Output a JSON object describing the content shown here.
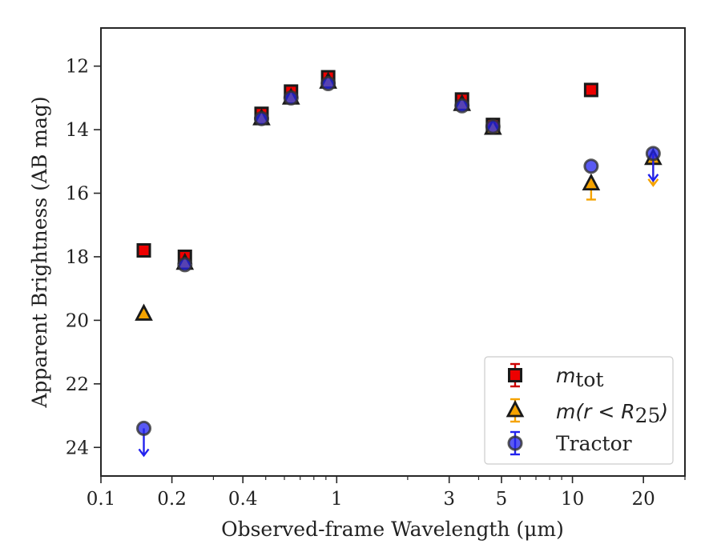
{
  "chart_data": {
    "type": "scatter",
    "title": "",
    "xlabel": "Observed-frame Wavelength (μm)",
    "ylabel": "Apparent Brightness (AB mag)",
    "x_scale": "log",
    "xlim": [
      0.1,
      30
    ],
    "ylim": [
      24.9,
      10.8
    ],
    "y_inverted": true,
    "x_ticks": [
      0.1,
      0.2,
      0.4,
      1,
      3,
      5,
      10,
      20
    ],
    "x_tick_labels": [
      "0.1",
      "0.2",
      "0.4",
      "1",
      "3",
      "5",
      "10",
      "20"
    ],
    "y_ticks": [
      12,
      14,
      16,
      18,
      20,
      22,
      24
    ],
    "y_tick_labels": [
      "12",
      "14",
      "16",
      "18",
      "20",
      "22",
      "24"
    ],
    "grid": false,
    "legend_position": "bottom-right",
    "series": [
      {
        "name": "m_tot",
        "legend_main": "m",
        "legend_sub": "tot",
        "marker": "square",
        "color": "#ee0000",
        "errcolor": "#cc0000",
        "points": [
          {
            "x": 0.152,
            "y": 17.8
          },
          {
            "x": 0.227,
            "y": 18.0
          },
          {
            "x": 0.48,
            "y": 13.5
          },
          {
            "x": 0.64,
            "y": 12.8
          },
          {
            "x": 0.92,
            "y": 12.35
          },
          {
            "x": 3.4,
            "y": 13.05
          },
          {
            "x": 4.6,
            "y": 13.85
          },
          {
            "x": 12.0,
            "y": 12.75
          }
        ]
      },
      {
        "name": "m(r < R25)",
        "legend_main": "m(r < R",
        "legend_sub": "25",
        "legend_close": ")",
        "marker": "triangle",
        "color": "#f5a300",
        "errcolor": "#f5a300",
        "points": [
          {
            "x": 0.152,
            "y": 19.8
          },
          {
            "x": 0.227,
            "y": 18.2
          },
          {
            "x": 0.48,
            "y": 13.65
          },
          {
            "x": 0.64,
            "y": 13.0
          },
          {
            "x": 0.92,
            "y": 12.5
          },
          {
            "x": 3.4,
            "y": 13.2
          },
          {
            "x": 4.6,
            "y": 13.95
          },
          {
            "x": 12.0,
            "y": 15.7,
            "err_low": 0.5,
            "err_high": 0.0
          },
          {
            "x": 22.0,
            "y": 14.9,
            "upper_limit": true
          }
        ]
      },
      {
        "name": "Tractor",
        "legend_main": "Tractor",
        "marker": "circle",
        "color": "#2222ee",
        "errcolor": "#2222ee",
        "points": [
          {
            "x": 0.152,
            "y": 23.4,
            "upper_limit": true
          },
          {
            "x": 0.227,
            "y": 18.25
          },
          {
            "x": 0.48,
            "y": 13.65
          },
          {
            "x": 0.64,
            "y": 13.0
          },
          {
            "x": 0.92,
            "y": 12.55
          },
          {
            "x": 3.4,
            "y": 13.25
          },
          {
            "x": 4.6,
            "y": 13.9
          },
          {
            "x": 12.0,
            "y": 15.15
          },
          {
            "x": 22.0,
            "y": 14.75,
            "upper_limit": true
          }
        ]
      }
    ]
  }
}
